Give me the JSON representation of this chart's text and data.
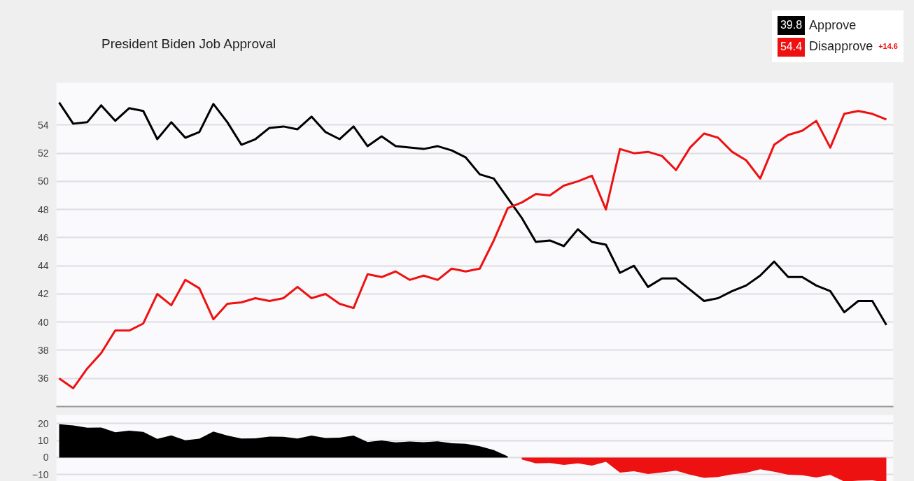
{
  "chart_data": [
    {
      "type": "line",
      "title": "President Biden Job Approval",
      "legend": "top right",
      "grid": "y",
      "tick_labels": "y",
      "annotations": [
        "39.8",
        "54.4",
        "+14.6"
      ],
      "categories": [
        null,
        null,
        null,
        null,
        null,
        null,
        null,
        null,
        null,
        null,
        null,
        null,
        null,
        null,
        null,
        null,
        null,
        null,
        null,
        null,
        null,
        null,
        null,
        null,
        null,
        null,
        null,
        null,
        null,
        null,
        null,
        null,
        null,
        null,
        null,
        null,
        null,
        null,
        null,
        null,
        null,
        null,
        null,
        null,
        null,
        null,
        null,
        null,
        null,
        null,
        null,
        null,
        null,
        null,
        null,
        null,
        null,
        null,
        null,
        null
      ],
      "ylim": [
        34,
        57
      ],
      "yticks": [
        36,
        38,
        40,
        42,
        44,
        46,
        48,
        50,
        52,
        54
      ],
      "series": [
        {
          "name": "Approve",
          "color": "#000000",
          "values": [
            55.6,
            54.1,
            54.2,
            55.4,
            54.3,
            55.2,
            55.0,
            53.0,
            54.2,
            53.1,
            53.5,
            55.5,
            54.2,
            52.6,
            53.0,
            53.8,
            53.9,
            53.7,
            54.6,
            53.5,
            53.0,
            53.9,
            52.5,
            53.2,
            52.5,
            52.4,
            52.3,
            52.5,
            52.2,
            51.7,
            50.5,
            50.2,
            48.8,
            47.4,
            45.7,
            45.8,
            45.4,
            46.6,
            45.7,
            45.5,
            43.5,
            44.0,
            42.5,
            43.1,
            43.1,
            42.3,
            41.5,
            41.7,
            42.2,
            42.6,
            43.3,
            44.3,
            43.2,
            43.2,
            42.6,
            42.2,
            40.7,
            41.5,
            41.5,
            39.8
          ]
        },
        {
          "name": "Disapprove",
          "color": "#ee1111",
          "values": [
            36.0,
            35.3,
            36.7,
            37.8,
            39.4,
            39.4,
            39.9,
            42.0,
            41.2,
            43.0,
            42.4,
            40.2,
            41.3,
            41.4,
            41.7,
            41.5,
            41.7,
            42.5,
            41.7,
            42.0,
            41.3,
            41.0,
            43.4,
            43.2,
            43.6,
            43.0,
            43.3,
            43.0,
            43.8,
            43.6,
            43.8,
            45.8,
            48.1,
            48.5,
            49.1,
            49.0,
            49.7,
            50.0,
            50.4,
            48.0,
            52.3,
            52.0,
            52.1,
            51.8,
            50.8,
            52.4,
            53.4,
            53.1,
            52.1,
            51.5,
            50.2,
            52.6,
            53.3,
            53.6,
            54.3,
            52.4,
            54.8,
            55.0,
            54.8,
            54.4
          ]
        }
      ]
    },
    {
      "type": "area",
      "grid": "y",
      "tick_labels": "y",
      "categories": [
        null,
        null,
        null,
        null,
        null,
        null,
        null,
        null,
        null,
        null,
        null,
        null,
        null,
        null,
        null,
        null,
        null,
        null,
        null,
        null,
        null,
        null,
        null,
        null,
        null,
        null,
        null,
        null,
        null,
        null,
        null,
        null,
        null,
        null,
        null,
        null,
        null,
        null,
        null,
        null,
        null,
        null,
        null,
        null,
        null,
        null,
        null,
        null,
        null,
        null,
        null,
        null,
        null,
        null,
        null,
        null,
        null,
        null,
        null,
        null
      ],
      "ylim": [
        -16,
        25
      ],
      "yticks": [
        -10,
        0,
        10,
        20
      ],
      "series": [
        {
          "color": "#000000",
          "values": [
            19.6,
            18.8,
            17.5,
            17.6,
            14.9,
            15.8,
            15.1,
            11.0,
            13.0,
            10.1,
            11.1,
            15.3,
            12.9,
            11.2,
            11.3,
            12.3,
            12.2,
            11.2,
            12.9,
            11.5,
            11.7,
            12.9,
            9.1,
            10.0,
            8.9,
            9.4,
            9.0,
            9.5,
            8.4,
            8.1,
            6.7,
            4.4,
            0.7,
            null,
            null,
            null,
            null,
            null,
            null,
            null,
            null,
            null,
            null,
            null,
            null,
            null,
            null,
            null,
            null,
            null,
            null,
            null,
            null,
            null,
            null,
            null,
            null,
            null,
            null,
            null
          ]
        },
        {
          "color": "#ee1111",
          "values": [
            null,
            null,
            null,
            null,
            null,
            null,
            null,
            null,
            null,
            null,
            null,
            null,
            null,
            null,
            null,
            null,
            null,
            null,
            null,
            null,
            null,
            null,
            null,
            null,
            null,
            null,
            null,
            null,
            null,
            null,
            null,
            null,
            null,
            -1.1,
            -3.4,
            -3.2,
            -4.3,
            -3.4,
            -4.7,
            -2.5,
            -8.8,
            -8.0,
            -9.6,
            -8.7,
            -7.7,
            -10.1,
            -11.9,
            -11.4,
            -9.9,
            -8.9,
            -6.9,
            -8.3,
            -10.1,
            -10.4,
            -11.7,
            -10.2,
            -14.1,
            -13.5,
            -13.3,
            -14.6
          ]
        }
      ]
    }
  ]
}
